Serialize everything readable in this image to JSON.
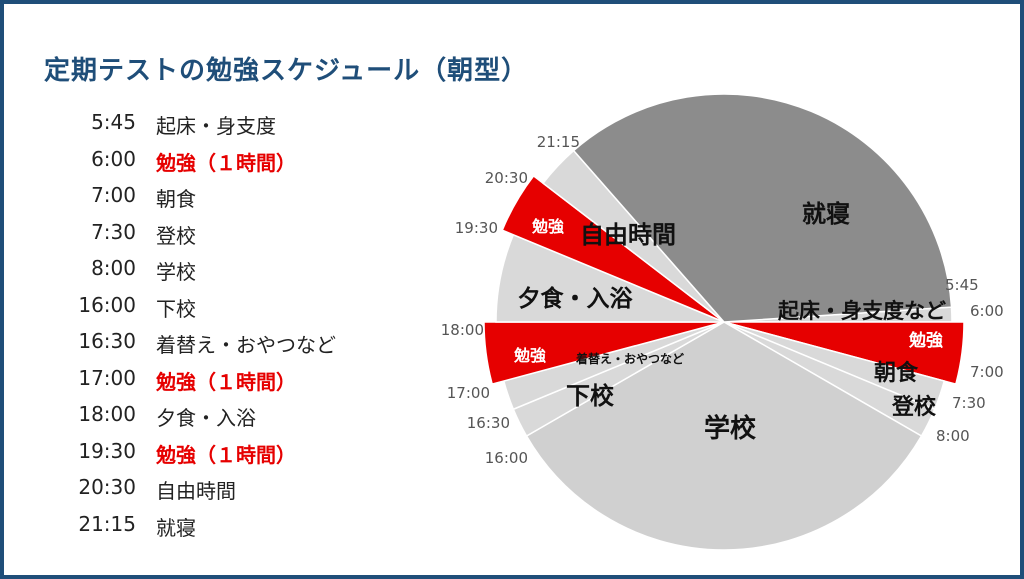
{
  "title": "定期テストの勉強スケジュール（朝型）",
  "schedule": [
    {
      "time": "5:45",
      "activity": "起床・身支度",
      "study": false
    },
    {
      "time": "6:00",
      "activity": "勉強（１時間）",
      "study": true
    },
    {
      "time": "7:00",
      "activity": "朝食",
      "study": false
    },
    {
      "time": "7:30",
      "activity": "登校",
      "study": false
    },
    {
      "time": "8:00",
      "activity": "学校",
      "study": false
    },
    {
      "time": "16:00",
      "activity": "下校",
      "study": false
    },
    {
      "time": "16:30",
      "activity": "着替え・おやつなど",
      "study": false
    },
    {
      "time": "17:00",
      "activity": "勉強（１時間）",
      "study": true
    },
    {
      "time": "18:00",
      "activity": "夕食・入浴",
      "study": false
    },
    {
      "time": "19:30",
      "activity": "勉強（１時間）",
      "study": true
    },
    {
      "time": "20:30",
      "activity": "自由時間",
      "study": false
    },
    {
      "time": "21:15",
      "activity": "就寝",
      "study": false
    }
  ],
  "colors": {
    "title": "#1f4e79",
    "study": "#e60000",
    "sleep": "#8c8c8c",
    "school": "#d0d0d0",
    "light": "#d9d9d9"
  },
  "chart_data": {
    "type": "pie",
    "unit": "hours",
    "slices": [
      {
        "label": "起床・身支度など",
        "start": "5:45",
        "end": "6:00",
        "hours": 0.25,
        "color": "#d9d9d9"
      },
      {
        "label": "勉強",
        "start": "6:00",
        "end": "7:00",
        "hours": 1.0,
        "color": "#e60000"
      },
      {
        "label": "朝食",
        "start": "7:00",
        "end": "7:30",
        "hours": 0.5,
        "color": "#d9d9d9"
      },
      {
        "label": "登校",
        "start": "7:30",
        "end": "8:00",
        "hours": 0.5,
        "color": "#d9d9d9"
      },
      {
        "label": "学校",
        "start": "8:00",
        "end": "16:00",
        "hours": 8.0,
        "color": "#d0d0d0"
      },
      {
        "label": "下校",
        "start": "16:00",
        "end": "16:30",
        "hours": 0.5,
        "color": "#d9d9d9"
      },
      {
        "label": "着替え・おやつなど",
        "start": "16:30",
        "end": "17:00",
        "hours": 0.5,
        "color": "#d9d9d9"
      },
      {
        "label": "勉強",
        "start": "17:00",
        "end": "18:00",
        "hours": 1.0,
        "color": "#e60000"
      },
      {
        "label": "夕食・入浴",
        "start": "18:00",
        "end": "19:30",
        "hours": 1.5,
        "color": "#d9d9d9"
      },
      {
        "label": "勉強",
        "start": "19:30",
        "end": "20:30",
        "hours": 1.0,
        "color": "#e60000"
      },
      {
        "label": "自由時間",
        "start": "20:30",
        "end": "21:15",
        "hours": 0.75,
        "color": "#d9d9d9"
      },
      {
        "label": "就寝",
        "start": "21:15",
        "end": "5:45",
        "hours": 8.5,
        "color": "#8c8c8c"
      }
    ],
    "extra_labels": {
      "study_bottom": "着替え・おやつなど"
    },
    "tick_labels": [
      "5:45",
      "6:00",
      "7:00",
      "7:30",
      "8:00",
      "16:00",
      "16:30",
      "17:00",
      "18:00",
      "19:30",
      "20:30",
      "21:15"
    ]
  }
}
